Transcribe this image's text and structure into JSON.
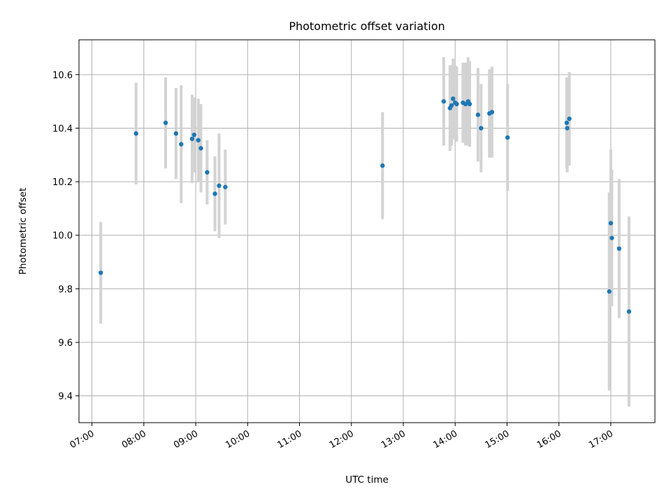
{
  "chart_data": {
    "type": "scatter",
    "title": "Photometric offset variation",
    "xlabel": "UTC time",
    "ylabel": "Photometric offset",
    "x_unit": "hours UTC",
    "xlim": [
      6.75,
      17.85
    ],
    "ylim": [
      9.3,
      10.73
    ],
    "grid": true,
    "x_ticks": [
      {
        "value": 7,
        "label": "07:00"
      },
      {
        "value": 8,
        "label": "08:00"
      },
      {
        "value": 9,
        "label": "09:00"
      },
      {
        "value": 10,
        "label": "10:00"
      },
      {
        "value": 11,
        "label": "11:00"
      },
      {
        "value": 12,
        "label": "12:00"
      },
      {
        "value": 13,
        "label": "13:00"
      },
      {
        "value": 14,
        "label": "14:00"
      },
      {
        "value": 15,
        "label": "15:00"
      },
      {
        "value": 16,
        "label": "16:00"
      },
      {
        "value": 17,
        "label": "17:00"
      }
    ],
    "y_ticks": [
      {
        "value": 9.4,
        "label": "9.4"
      },
      {
        "value": 9.6,
        "label": "9.6"
      },
      {
        "value": 9.8,
        "label": "9.8"
      },
      {
        "value": 10.0,
        "label": "10.0"
      },
      {
        "value": 10.2,
        "label": "10.2"
      },
      {
        "value": 10.4,
        "label": "10.4"
      },
      {
        "value": 10.6,
        "label": "10.6"
      }
    ],
    "marker_color": "#1f77b4",
    "errorbar_color": "#d3d3d3",
    "points": [
      {
        "x": 7.17,
        "y": 9.86,
        "err": 0.19
      },
      {
        "x": 7.85,
        "y": 10.38,
        "err": 0.19
      },
      {
        "x": 8.42,
        "y": 10.42,
        "err": 0.17
      },
      {
        "x": 8.62,
        "y": 10.38,
        "err": 0.17
      },
      {
        "x": 8.72,
        "y": 10.34,
        "err": 0.22
      },
      {
        "x": 8.93,
        "y": 10.36,
        "err": 0.165
      },
      {
        "x": 8.97,
        "y": 10.375,
        "err": 0.14
      },
      {
        "x": 9.05,
        "y": 10.355,
        "err": 0.155
      },
      {
        "x": 9.1,
        "y": 10.325,
        "err": 0.165
      },
      {
        "x": 9.22,
        "y": 10.235,
        "err": 0.12
      },
      {
        "x": 9.37,
        "y": 10.155,
        "err": 0.14
      },
      {
        "x": 9.45,
        "y": 10.185,
        "err": 0.195
      },
      {
        "x": 9.57,
        "y": 10.18,
        "err": 0.14
      },
      {
        "x": 12.6,
        "y": 10.26,
        "err": 0.2
      },
      {
        "x": 13.78,
        "y": 10.5,
        "err": 0.165
      },
      {
        "x": 13.9,
        "y": 10.475,
        "err": 0.16
      },
      {
        "x": 13.93,
        "y": 10.485,
        "err": 0.15
      },
      {
        "x": 13.96,
        "y": 10.51,
        "err": 0.15
      },
      {
        "x": 14.0,
        "y": 10.495,
        "err": 0.14
      },
      {
        "x": 14.03,
        "y": 10.49,
        "err": 0.14
      },
      {
        "x": 14.15,
        "y": 10.495,
        "err": 0.15
      },
      {
        "x": 14.2,
        "y": 10.49,
        "err": 0.155
      },
      {
        "x": 14.25,
        "y": 10.5,
        "err": 0.165
      },
      {
        "x": 14.28,
        "y": 10.49,
        "err": 0.16
      },
      {
        "x": 14.44,
        "y": 10.45,
        "err": 0.175
      },
      {
        "x": 14.5,
        "y": 10.4,
        "err": 0.165
      },
      {
        "x": 14.66,
        "y": 10.455,
        "err": 0.165
      },
      {
        "x": 14.71,
        "y": 10.46,
        "err": 0.17
      },
      {
        "x": 15.01,
        "y": 10.365,
        "err": 0.2
      },
      {
        "x": 16.15,
        "y": 10.42,
        "err": 0.17
      },
      {
        "x": 16.16,
        "y": 10.4,
        "err": 0.165
      },
      {
        "x": 16.2,
        "y": 10.435,
        "err": 0.175
      },
      {
        "x": 16.97,
        "y": 9.79,
        "err": 0.37
      },
      {
        "x": 17.0,
        "y": 10.045,
        "err": 0.275
      },
      {
        "x": 17.02,
        "y": 9.99,
        "err": 0.255
      },
      {
        "x": 17.16,
        "y": 9.95,
        "err": 0.26
      },
      {
        "x": 17.35,
        "y": 9.715,
        "err": 0.355
      }
    ]
  }
}
